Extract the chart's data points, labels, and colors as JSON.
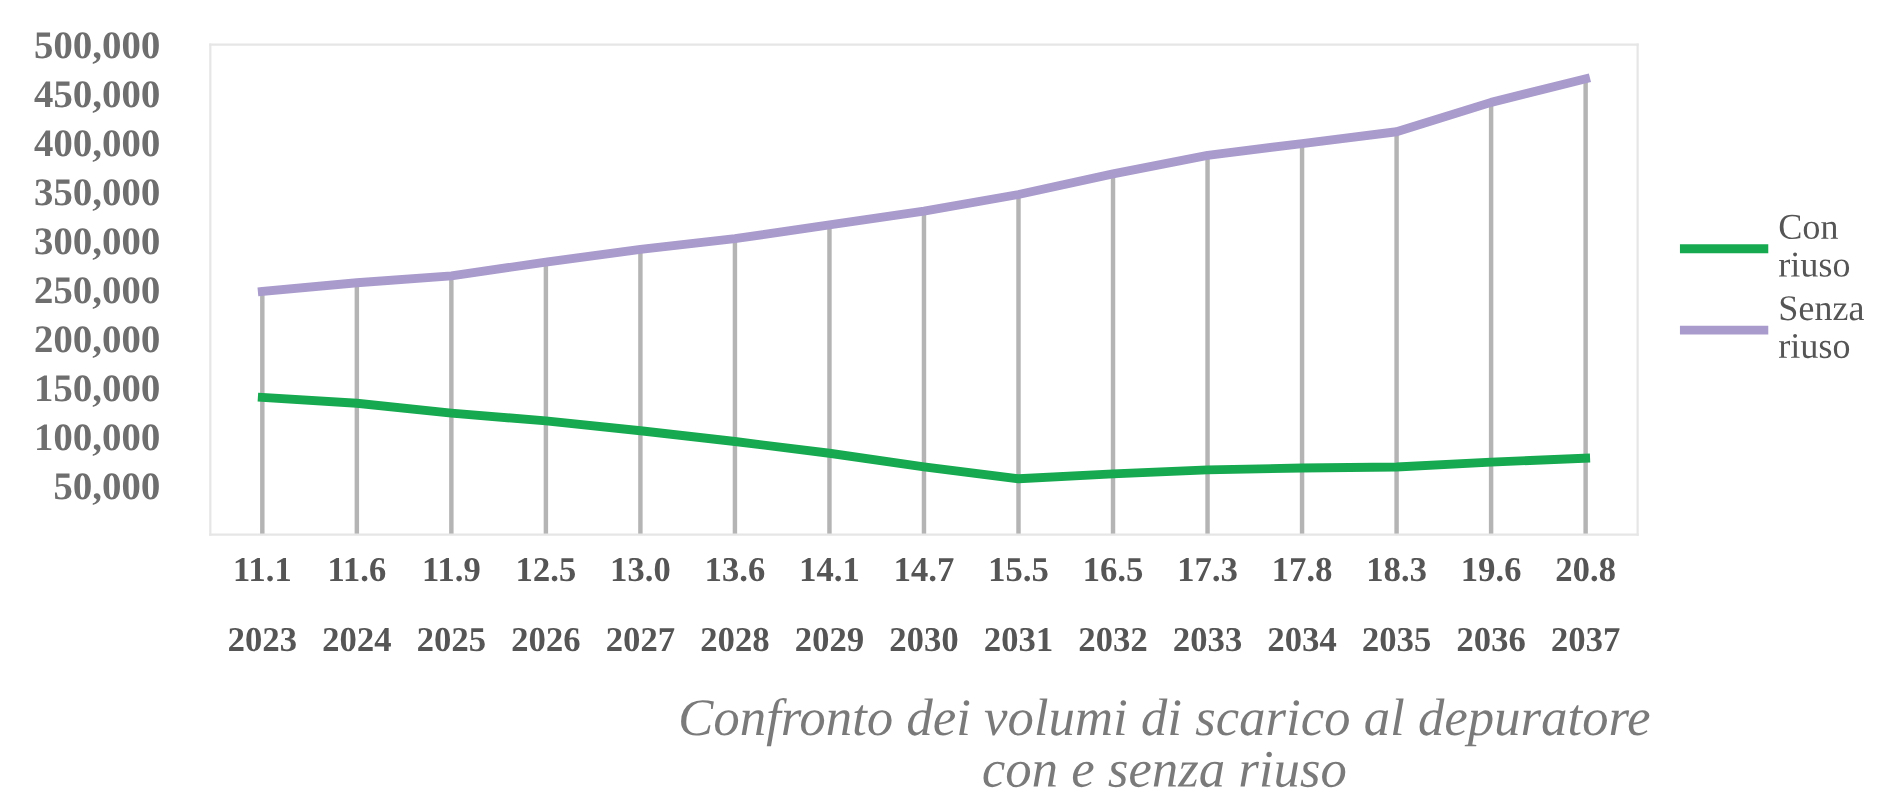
{
  "chart_data": {
    "type": "line",
    "title": "Confronto dei volumi di scarico al depuratore\ncon e senza riuso",
    "categories": [
      "11.1\n2023",
      "11.6\n2024",
      "11.9\n2025",
      "12.5\n2026",
      "13.0\n2027",
      "13.6\n2028",
      "14.1\n2029",
      "14.7\n2030",
      "15.5\n2031",
      "16.5\n2032",
      "17.3\n2033",
      "17.8\n2034",
      "18.3\n2035",
      "19.6\n2036",
      "20.8\n2037"
    ],
    "series": [
      {
        "name": "Con\nriuso",
        "color": "#16a950",
        "values": [
          140000,
          134000,
          124000,
          116000,
          106000,
          95000,
          83000,
          69000,
          57000,
          62000,
          66000,
          68000,
          69000,
          74000,
          78000
        ]
      },
      {
        "name": "Senza\nriuso",
        "color": "#a99bcc",
        "values": [
          248000,
          257000,
          264000,
          278000,
          291000,
          302000,
          316000,
          330000,
          347000,
          368000,
          387000,
          399000,
          411000,
          441000,
          465000
        ]
      }
    ],
    "ylim": [
      0,
      500000
    ],
    "yticks": [
      {
        "value": 50000,
        "label": "50,000"
      },
      {
        "value": 100000,
        "label": "100,000"
      },
      {
        "value": 150000,
        "label": "150,000"
      },
      {
        "value": 200000,
        "label": "200,000"
      },
      {
        "value": 250000,
        "label": "250,000"
      },
      {
        "value": 300000,
        "label": "300,000"
      },
      {
        "value": 350000,
        "label": "350,000"
      },
      {
        "value": 400000,
        "label": "400,000"
      },
      {
        "value": 450000,
        "label": "450,000"
      },
      {
        "value": 500000,
        "label": "500,000"
      }
    ],
    "grid": "x",
    "legend": "right",
    "marker": "none",
    "line_style": "solid"
  }
}
